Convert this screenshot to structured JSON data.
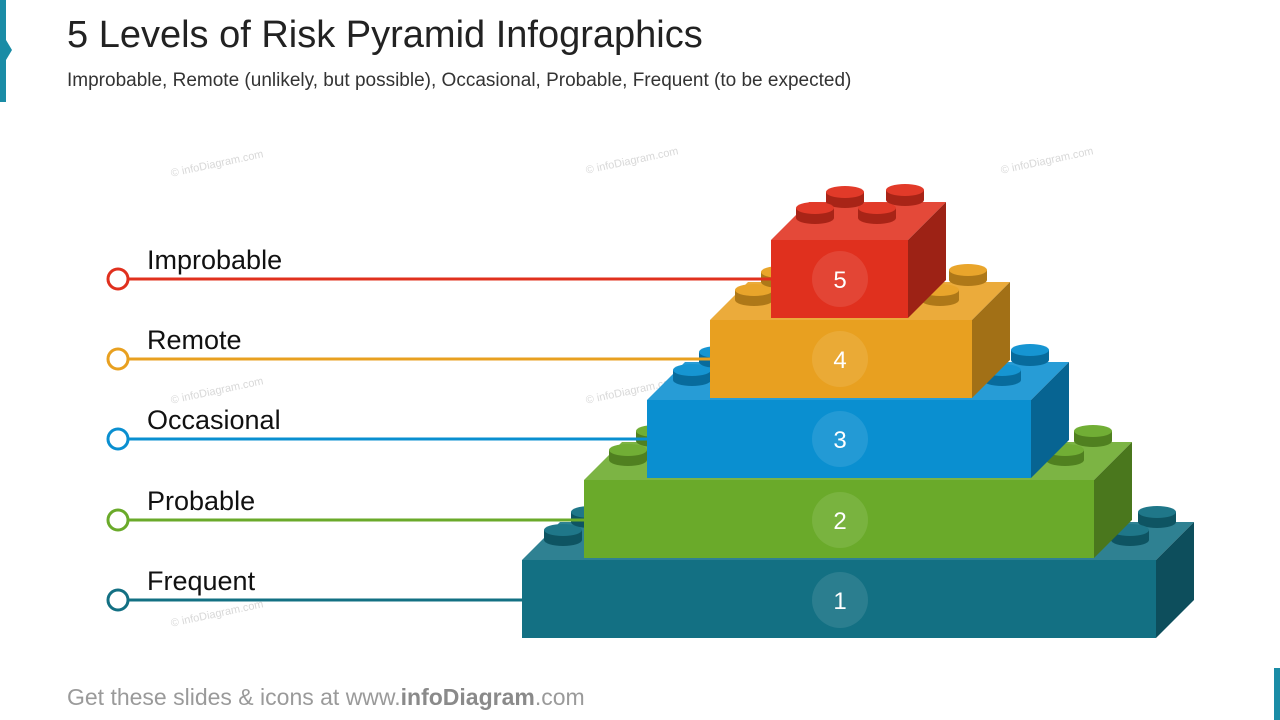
{
  "header": {
    "title": "5 Levels of Risk Pyramid Infographics",
    "subtitle": "Improbable, Remote (unlikely, but possible), Occasional, Probable, Frequent (to be expected)"
  },
  "watermark": "© infoDiagram.com",
  "footer": {
    "prefix": "Get these slides & icons at www.",
    "brand": "infoDiagram",
    "suffix": ".com"
  },
  "levels": [
    {
      "label": "Improbable",
      "number": "5",
      "color": "#e0301e"
    },
    {
      "label": "Remote",
      "number": "4",
      "color": "#e8a020"
    },
    {
      "label": "Occasional",
      "number": "3",
      "color": "#0a8fd0"
    },
    {
      "label": "Probable",
      "number": "2",
      "color": "#6aaa2a"
    },
    {
      "label": "Frequent",
      "number": "1",
      "color": "#137083"
    }
  ]
}
